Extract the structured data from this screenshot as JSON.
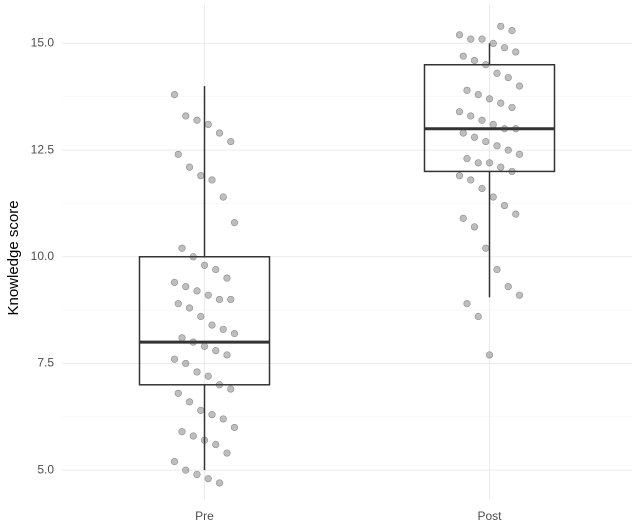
{
  "chart_data": {
    "type": "box",
    "y_label": "Knowledge score",
    "categories": [
      "Pre",
      "Post"
    ],
    "boxes": [
      {
        "min": 5,
        "q1": 7,
        "median": 8,
        "q3": 10,
        "max": 14
      },
      {
        "min": 9.05,
        "q1": 12,
        "median": 13,
        "q3": 14.5,
        "max": 15
      }
    ],
    "points": [
      [
        13.8,
        13.3,
        13.2,
        13.1,
        12.9,
        12.7,
        12.4,
        12.1,
        11.9,
        11.8,
        11.4,
        10.8,
        10.2,
        10.0,
        9.8,
        9.7,
        9.5,
        9.4,
        9.3,
        9.2,
        9.1,
        9.0,
        9.0,
        8.9,
        8.8,
        8.6,
        8.4,
        8.3,
        8.2,
        8.1,
        8.0,
        7.9,
        7.8,
        7.7,
        7.6,
        7.5,
        7.3,
        7.2,
        7.0,
        6.9,
        6.8,
        6.6,
        6.4,
        6.3,
        6.2,
        6.0,
        5.9,
        5.8,
        5.7,
        5.6,
        5.4,
        5.2,
        5.0,
        4.9,
        4.8,
        4.7
      ],
      [
        15.4,
        15.3,
        15.2,
        15.1,
        15.1,
        15.0,
        14.9,
        14.8,
        14.7,
        14.6,
        14.5,
        14.3,
        14.2,
        14.0,
        13.9,
        13.8,
        13.7,
        13.6,
        13.5,
        13.4,
        13.3,
        13.2,
        13.1,
        13.0,
        13.0,
        12.9,
        12.8,
        12.7,
        12.6,
        12.5,
        12.4,
        12.3,
        12.2,
        12.2,
        12.1,
        12.0,
        11.9,
        11.8,
        11.6,
        11.4,
        11.2,
        11.0,
        10.9,
        10.7,
        10.2,
        9.7,
        9.3,
        9.1,
        8.9,
        8.6,
        7.7
      ]
    ],
    "point_color": "#444444",
    "box_color": "#333333",
    "ylim": [
      4.3,
      15.9
    ],
    "yticks": [
      {
        "value": 5,
        "label": "5.0"
      },
      {
        "value": 7.5,
        "label": "7.5"
      },
      {
        "value": 10,
        "label": "10.0"
      },
      {
        "value": 12.5,
        "label": "12.5"
      },
      {
        "value": 15,
        "label": "15.0"
      }
    ],
    "grid": true
  }
}
